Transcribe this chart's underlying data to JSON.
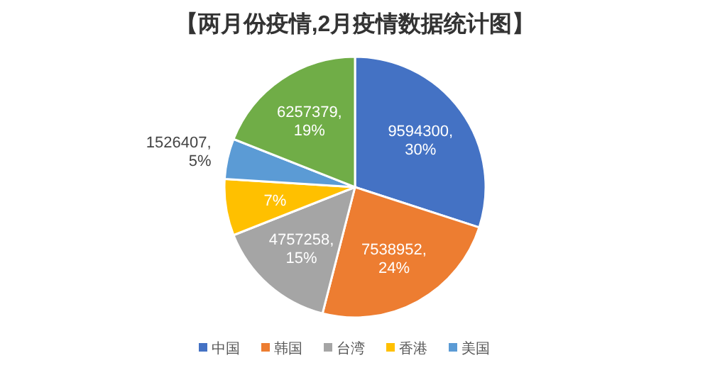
{
  "chart_data": {
    "type": "pie",
    "title": "【两月份疫情,2月疫情数据统计图】",
    "categories": [
      "中国",
      "韩国",
      "台湾",
      "香港",
      "美国",
      null
    ],
    "values": [
      30,
      24,
      15,
      7,
      5,
      19
    ],
    "colors": [
      "#4472c4",
      "#ed7d31",
      "#a5a5a5",
      "#ffc000",
      "#5b9bd5",
      "#70ad47"
    ],
    "value_labels": [
      "9594300,\n30%",
      "7538952,\n24%",
      "4757258,\n15%",
      "7%",
      "1526407,\n5%",
      "6257379,\n19%"
    ],
    "legend": "bottom"
  }
}
